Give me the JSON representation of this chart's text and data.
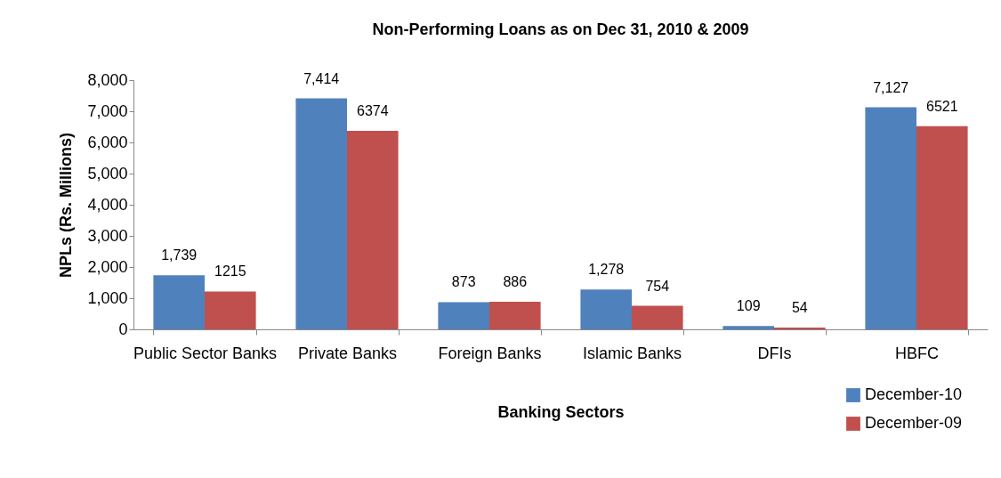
{
  "chart_data": {
    "type": "bar",
    "title": "Non-Performing Loans as on Dec  31, 2010 & 2009",
    "xlabel": "Banking Sectors",
    "ylabel": "NPLs (Rs. Millions)",
    "categories": [
      "Public Sector Banks",
      "Private Banks",
      "Foreign Banks",
      "Islamic Banks",
      "DFIs",
      "HBFC"
    ],
    "series": [
      {
        "name": "December-10",
        "color": "#4f81bd",
        "values": [
          1739,
          7414,
          873,
          1278,
          109,
          7127
        ],
        "value_labels": [
          "1,739",
          "7,414",
          "873",
          "1,278",
          "109",
          "7,127"
        ]
      },
      {
        "name": "December-09",
        "color": "#c0504d",
        "values": [
          1215,
          6374,
          886,
          754,
          54,
          6521
        ],
        "value_labels": [
          "1215",
          "6374",
          "886",
          "754",
          "54",
          "6521"
        ]
      }
    ],
    "ylim": [
      0,
      8000
    ],
    "yticks": [
      {
        "value": 0,
        "label": "0"
      },
      {
        "value": 1000,
        "label": "1,000"
      },
      {
        "value": 2000,
        "label": "2,000"
      },
      {
        "value": 3000,
        "label": "3,000"
      },
      {
        "value": 4000,
        "label": "4,000"
      },
      {
        "value": 5000,
        "label": "5,000"
      },
      {
        "value": 6000,
        "label": "6,000"
      },
      {
        "value": 7000,
        "label": "7,000"
      },
      {
        "value": 8000,
        "label": "8,000"
      }
    ],
    "grid": false,
    "legend": "bottom right"
  }
}
